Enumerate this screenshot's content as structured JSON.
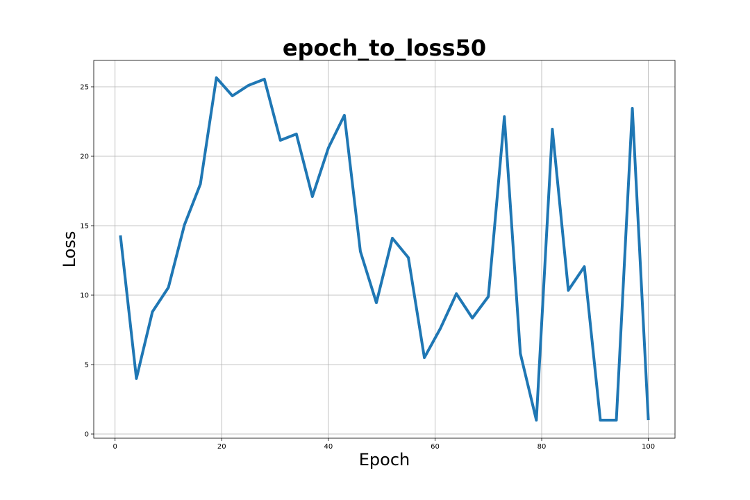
{
  "chart_data": {
    "type": "line",
    "title": "epoch_to_loss50",
    "xlabel": "Epoch",
    "ylabel": "Loss",
    "xlim": [
      -4,
      105
    ],
    "ylim": [
      -0.3,
      26.9
    ],
    "xticks": [
      0,
      20,
      40,
      60,
      80,
      100
    ],
    "yticks": [
      0,
      5,
      10,
      15,
      20,
      25
    ],
    "grid": true,
    "series": [
      {
        "color": "#1f77b4",
        "x": [
          1,
          4,
          7,
          10,
          13,
          16,
          19,
          22,
          25,
          28,
          31,
          34,
          37,
          40,
          43,
          46,
          49,
          52,
          55,
          58,
          61,
          64,
          67,
          70,
          73,
          76,
          79,
          82,
          85,
          88,
          91,
          94,
          97,
          100
        ],
        "values": [
          14.3,
          4.0,
          8.8,
          10.55,
          15.05,
          18.0,
          25.65,
          24.35,
          25.1,
          25.55,
          21.15,
          21.6,
          17.1,
          20.6,
          22.95,
          13.15,
          9.45,
          14.1,
          12.7,
          5.5,
          7.6,
          10.1,
          8.35,
          9.9,
          22.85,
          5.8,
          1.0,
          21.95,
          10.35,
          12.05,
          1.0,
          1.0,
          23.45,
          1.0
        ]
      }
    ]
  }
}
